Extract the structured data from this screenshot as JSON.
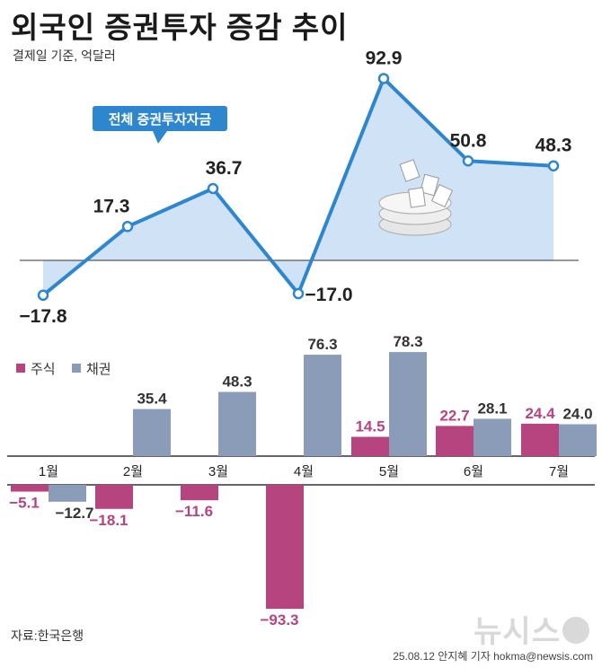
{
  "title": "외국인 증권투자 증감 추이",
  "subtitle": "결제일 기준, 억달러",
  "source": "자료:한국은행",
  "credit": "25.08.12 안지혜 기자 hokma@newsis.com",
  "logo_text": "뉴시스",
  "colors": {
    "line": "#2e86cf",
    "area": "#cfe2f6",
    "stock": "#b5447f",
    "bond": "#8a9cb8",
    "baseline": "#333333"
  },
  "chart_data": [
    {
      "type": "area",
      "title": "",
      "series": [
        {
          "name": "전체 증권투자자금",
          "values": [
            -17.8,
            17.3,
            36.7,
            -17.0,
            92.9,
            50.8,
            48.3
          ]
        }
      ],
      "value_labels": [
        "−17.8",
        "17.3",
        "36.7",
        "−17.0",
        "92.9",
        "50.8",
        "48.3"
      ],
      "legend_callout": "전체 증권투자자금"
    },
    {
      "type": "bar",
      "categories": [
        "1월",
        "2월",
        "3월",
        "4월",
        "5월",
        "6월",
        "7월"
      ],
      "series": [
        {
          "name": "주식",
          "values": [
            -5.1,
            -18.1,
            -11.6,
            -93.3,
            14.5,
            22.7,
            24.4
          ],
          "labels": [
            "−5.1",
            "−18.1",
            "−11.6",
            "−93.3",
            "14.5",
            "22.7",
            "24.4"
          ]
        },
        {
          "name": "채권",
          "values": [
            -12.7,
            35.4,
            48.3,
            76.3,
            78.3,
            28.1,
            24.0
          ],
          "labels": [
            "−12.7",
            "35.4",
            "48.3",
            "76.3",
            "78.3",
            "28.1",
            "24.0"
          ]
        }
      ],
      "legend": [
        "주식",
        "채권"
      ],
      "legend_position": "top-left"
    }
  ]
}
